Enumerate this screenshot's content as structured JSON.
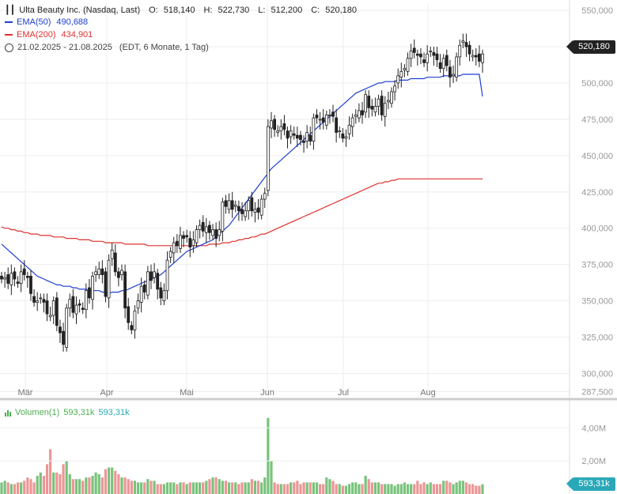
{
  "instrument": {
    "name": "Ulta Beauty Inc. (Nasdaq, Last)",
    "o_label": "O:",
    "o": "518,140",
    "h_label": "H:",
    "h": "522,730",
    "l_label": "L:",
    "l": "512,200",
    "c_label": "C:",
    "c": "520,180"
  },
  "legend": {
    "ema50_label": "EMA(50)",
    "ema50_value": "490,688",
    "ema50_color": "#1f3fd0",
    "ema200_label": "EMA(200)",
    "ema200_value": "434,901",
    "ema200_color": "#e03030",
    "range_text": "21.02.2025 - 21.08.2025",
    "range_note": "(EDT, 6 Monate, 1 Tag)",
    "range_icon": "clock-icon",
    "ohlc_icon": "candlestick-icon"
  },
  "price_badge": "520,180",
  "volume": {
    "icon": "bar-chart-icon",
    "label": "Volumen(1)",
    "value1": "593,31k",
    "value2": "593,31k",
    "badge": "593,31k",
    "color_up": "#4caf50",
    "color_down": "#e57373",
    "color_label2": "#2aa8b8"
  },
  "chart_data": {
    "type": "candlestick",
    "y_ticks": [
      "550,000",
      "525,000",
      "500,000",
      "475,000",
      "450,000",
      "425,000",
      "400,000",
      "375,000",
      "350,000",
      "325,000",
      "300,000",
      "287,500"
    ],
    "y_tick_values": [
      550,
      525,
      500,
      475,
      450,
      425,
      400,
      375,
      350,
      325,
      300,
      287.5
    ],
    "x_ticks": [
      "Mär",
      "Apr",
      "Mai",
      "Jun",
      "Jul",
      "Aug"
    ],
    "ylim": [
      285,
      555
    ],
    "volume_ticks": [
      "4,00M",
      "2,00M"
    ],
    "volume_tick_values": [
      4.0,
      2.0
    ],
    "up_color": "#4caf50",
    "down_color": "#e57373",
    "candle_color": "#222222",
    "closes": [
      365,
      366,
      362,
      369,
      365,
      362,
      370,
      368,
      366,
      355,
      349,
      350,
      352,
      349,
      341,
      340,
      350,
      333,
      328,
      320,
      345,
      351,
      342,
      347,
      347,
      344,
      357,
      352,
      367,
      370,
      372,
      368,
      353,
      378,
      385,
      370,
      366,
      371,
      345,
      335,
      330,
      343,
      350,
      360,
      356,
      370,
      364,
      370,
      358,
      352,
      357,
      378,
      384,
      390,
      388,
      395,
      393,
      394,
      387,
      392,
      399,
      402,
      398,
      401,
      397,
      399,
      393,
      399,
      418,
      415,
      419,
      413,
      416,
      412,
      410,
      412,
      419,
      412,
      413,
      411,
      420,
      424,
      470,
      474,
      468,
      467,
      470,
      468,
      462,
      467,
      464,
      462,
      461,
      459,
      466,
      460,
      476,
      476,
      475,
      473,
      478,
      478,
      477,
      466,
      467,
      462,
      463,
      471,
      476,
      478,
      481,
      478,
      492,
      483,
      482,
      484,
      489,
      478,
      486,
      488,
      494,
      498,
      505,
      508,
      510,
      517,
      522,
      521,
      519,
      518,
      514,
      520,
      522,
      519,
      516,
      510,
      517,
      512,
      504,
      506,
      518,
      526,
      529,
      525,
      520,
      519,
      518,
      515,
      520
    ],
    "ema50": [
      389,
      387,
      385,
      383,
      381,
      379,
      377,
      375,
      373,
      371,
      369,
      367,
      366,
      365,
      364,
      363,
      362,
      361,
      361,
      360,
      360,
      360,
      359,
      359,
      358,
      358,
      358,
      357,
      357,
      357,
      357,
      356,
      356,
      355,
      356,
      356,
      356,
      357,
      357,
      358,
      359,
      360,
      361,
      362,
      363,
      364,
      365,
      366,
      367,
      368,
      370,
      372,
      374,
      376,
      378,
      380,
      382,
      384,
      385,
      386,
      387,
      388,
      389,
      390,
      391,
      392,
      394,
      396,
      398,
      400,
      402,
      405,
      408,
      411,
      414,
      417,
      420,
      423,
      426,
      429,
      432,
      435,
      438,
      441,
      443,
      445,
      447,
      449,
      451,
      453,
      455,
      457,
      459,
      461,
      463,
      465,
      467,
      469,
      471,
      473,
      475,
      477,
      479,
      481,
      483,
      485,
      487,
      489,
      491,
      493,
      494,
      495,
      496,
      497,
      498,
      499,
      500,
      500,
      501,
      501,
      501,
      501,
      502,
      502,
      502,
      502,
      503,
      503,
      503,
      503,
      503,
      504,
      504,
      504,
      504,
      504,
      505,
      505,
      505,
      505,
      505,
      505,
      506,
      506,
      506,
      506,
      506,
      506,
      506,
      490.688
    ],
    "ema200": [
      401,
      400,
      400,
      399,
      399,
      398,
      398,
      397,
      397,
      396,
      396,
      396,
      395,
      395,
      395,
      395,
      394,
      394,
      394,
      394,
      393,
      393,
      393,
      393,
      392,
      392,
      392,
      392,
      391,
      391,
      391,
      391,
      390,
      390,
      390,
      390,
      390,
      390,
      389,
      389,
      389,
      389,
      389,
      389,
      389,
      388,
      388,
      388,
      388,
      388,
      388,
      388,
      388,
      388,
      388,
      388,
      388,
      388,
      388,
      388,
      388,
      388,
      388,
      388,
      389,
      389,
      389,
      389,
      390,
      390,
      390,
      391,
      391,
      392,
      392,
      393,
      393,
      394,
      394,
      395,
      396,
      396,
      397,
      398,
      399,
      400,
      401,
      402,
      403,
      404,
      405,
      406,
      407,
      408,
      409,
      410,
      411,
      412,
      413,
      414,
      415,
      416,
      417,
      418,
      419,
      420,
      421,
      422,
      423,
      424,
      425,
      426,
      427,
      428,
      429,
      430,
      431,
      431,
      432,
      432,
      433,
      433,
      434,
      434,
      434,
      434,
      434,
      434,
      434,
      434,
      434,
      434,
      434,
      434,
      434,
      434,
      434,
      434,
      434,
      434,
      434,
      434,
      434,
      434,
      434,
      434,
      434,
      434,
      434,
      434.901
    ],
    "volume_millions": [
      0.7,
      0.8,
      0.7,
      0.6,
      0.6,
      0.7,
      0.7,
      0.8,
      1.0,
      0.9,
      0.7,
      1.1,
      1.3,
      1.1,
      1.8,
      2.7,
      1.3,
      1.3,
      1.2,
      1.8,
      2.0,
      1.2,
      0.9,
      0.9,
      0.9,
      0.8,
      1.0,
      1.0,
      1.1,
      1.3,
      1.2,
      1.0,
      1.5,
      1.6,
      1.6,
      1.4,
      1.2,
      1.0,
      1.0,
      0.9,
      0.8,
      0.8,
      0.7,
      0.7,
      0.7,
      0.9,
      0.8,
      0.8,
      0.6,
      0.6,
      0.6,
      0.7,
      0.7,
      0.7,
      0.6,
      0.7,
      0.7,
      0.6,
      0.7,
      0.7,
      0.7,
      0.7,
      0.7,
      0.8,
      0.9,
      1.0,
      1.0,
      0.9,
      0.8,
      0.8,
      0.7,
      0.7,
      0.7,
      0.6,
      0.7,
      0.7,
      0.7,
      0.9,
      0.8,
      0.8,
      0.7,
      1.0,
      4.6,
      2.0,
      0.7,
      0.6,
      0.6,
      0.6,
      0.6,
      0.7,
      0.7,
      0.8,
      0.6,
      0.7,
      0.7,
      0.7,
      0.7,
      0.7,
      0.6,
      0.6,
      1.0,
      0.9,
      0.8,
      0.6,
      0.6,
      0.5,
      0.5,
      0.6,
      0.7,
      0.7,
      0.6,
      0.6,
      1.1,
      0.9,
      0.7,
      0.7,
      0.7,
      0.6,
      0.6,
      0.6,
      0.6,
      0.5,
      0.6,
      0.6,
      0.7,
      0.6,
      0.6,
      0.6,
      0.8,
      0.6,
      0.7,
      0.6,
      0.7,
      0.6,
      0.6,
      0.6,
      0.8,
      0.8,
      0.7,
      0.6,
      0.7,
      0.8,
      0.8,
      0.7,
      0.6,
      0.6,
      0.5,
      0.5,
      0.593
    ]
  }
}
